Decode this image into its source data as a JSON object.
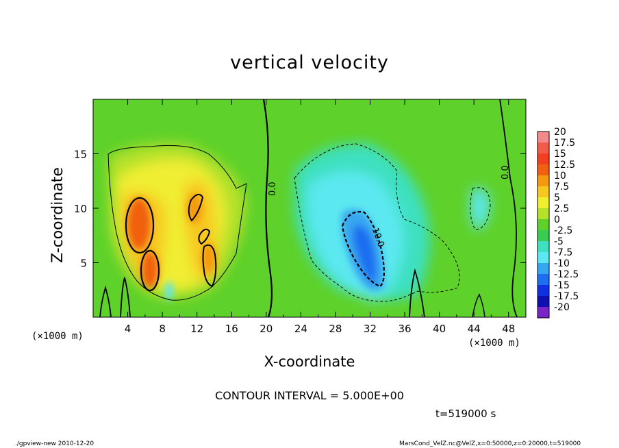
{
  "title": "vertical velocity",
  "xlabel": "X-coordinate",
  "ylabel": "Z-coordinate",
  "x_unit": "(×1000 m)",
  "y_unit": "(×1000 m)",
  "contour_interval": "CONTOUR INTERVAL = 5.000E+00",
  "time_label": "t=519000 s",
  "footer_left": "./gpview-new  2010-12-20",
  "footer_right": "MarsCond_VelZ.nc@VelZ,x=0:50000,z=0:20000,t=519000",
  "chart_data": {
    "type": "heatmap",
    "title": "vertical velocity",
    "xlabel": "X-coordinate",
    "ylabel": "Z-coordinate",
    "xlim": [
      0,
      50
    ],
    "ylim": [
      0,
      20
    ],
    "x_ticks": [
      4,
      8,
      12,
      16,
      20,
      24,
      28,
      32,
      36,
      40,
      44,
      48
    ],
    "y_ticks": [
      5,
      10,
      15
    ],
    "colorbar_levels": [
      "20",
      "17.5",
      "15",
      "12.5",
      "10",
      "7.5",
      "5",
      "2.5",
      "0",
      "-2.5",
      "-5",
      "-7.5",
      "-10",
      "-12.5",
      "-15",
      "-17.5",
      "-20"
    ],
    "colorbar_colors": [
      "#f28c8c",
      "#f25a4a",
      "#f04020",
      "#f06010",
      "#f59a10",
      "#f7c820",
      "#f0ee30",
      "#b4e12a",
      "#5ed12a",
      "#39cc50",
      "#3ee0c0",
      "#5ce8f0",
      "#37a6f0",
      "#1d6ef0",
      "#1230e0",
      "#0f10b0",
      "#7a25c8"
    ],
    "contour_labels": [
      "0.0",
      "0.0",
      "-10.0"
    ],
    "features": [
      {
        "sign": "positive",
        "x": 6,
        "z": 9,
        "peak": 12
      },
      {
        "sign": "positive",
        "x": 13,
        "z": 7,
        "peak": 11
      },
      {
        "sign": "negative",
        "x": 32,
        "z": 7,
        "peak": -15
      },
      {
        "sign": "negative",
        "x": 44,
        "z": 10,
        "peak": -5
      }
    ]
  }
}
